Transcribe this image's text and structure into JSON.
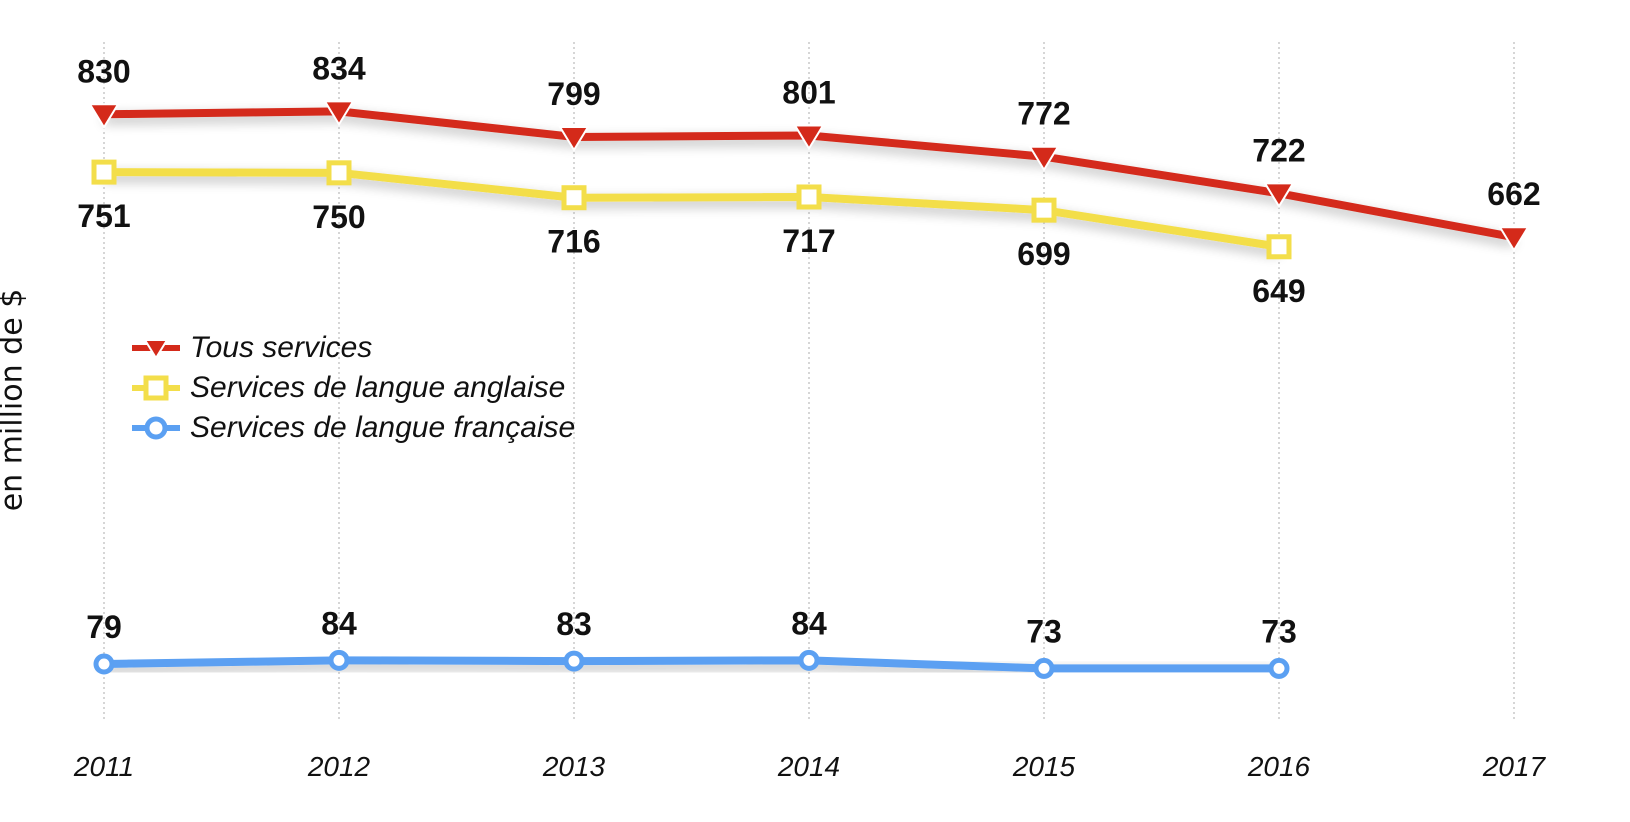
{
  "chart_data": {
    "type": "line",
    "categories": [
      "2011",
      "2012",
      "2013",
      "2014",
      "2015",
      "2016",
      "2017"
    ],
    "ylabel": "en million de $",
    "xlabel": "",
    "grid": "vertical dashed",
    "legend_placement": "middle-left",
    "series": [
      {
        "name": "Tous services",
        "color": "#d42a1a",
        "marker": "triangle-down",
        "values": [
          830,
          834,
          799,
          801,
          772,
          722,
          662
        ],
        "label_position": "above"
      },
      {
        "name": "Services de langue anglaise",
        "color": "#f3de4a",
        "marker": "square",
        "values": [
          751,
          750,
          716,
          717,
          699,
          649,
          null
        ],
        "label_position": "below"
      },
      {
        "name": "Services de langue française",
        "color": "#5ba0f2",
        "marker": "circle",
        "values": [
          79,
          84,
          83,
          84,
          73,
          73,
          null
        ],
        "label_position": "above"
      }
    ]
  }
}
